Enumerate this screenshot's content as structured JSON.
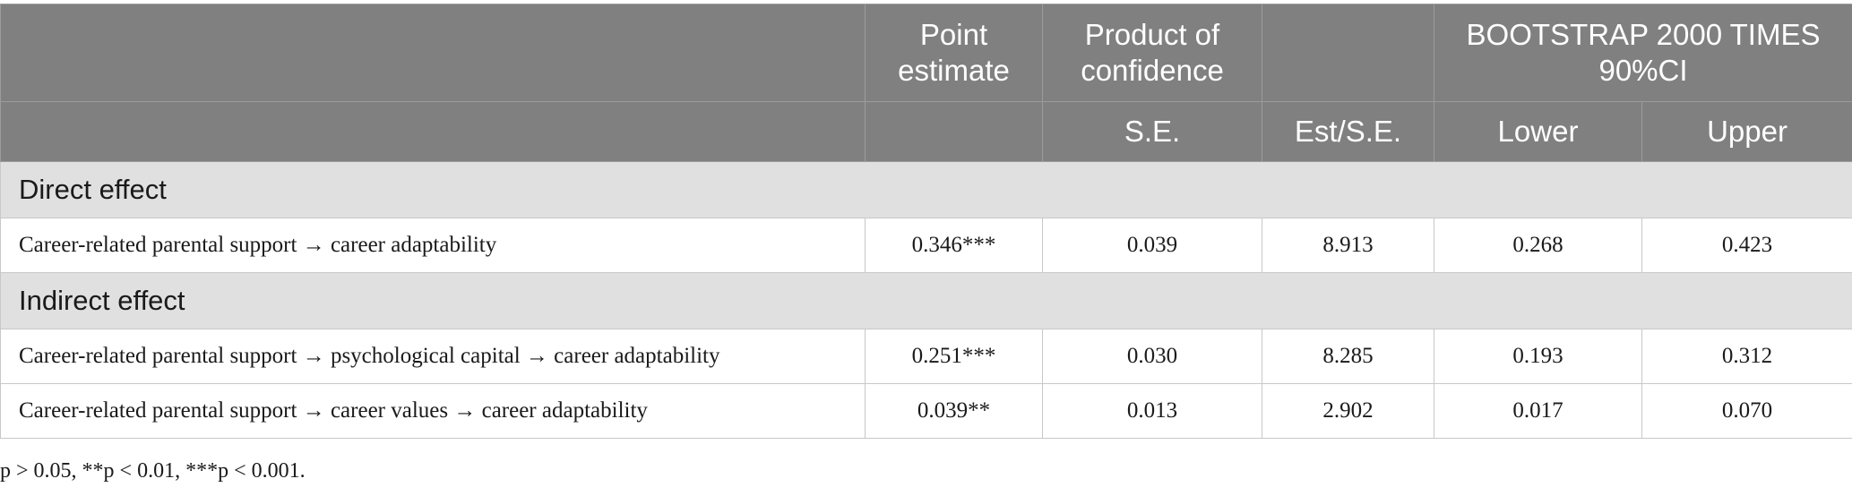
{
  "header": {
    "point_estimate": "Point estimate",
    "product_of_confidence": "Product of confidence",
    "bootstrap": "BOOTSTRAP 2000 TIMES 90%CI",
    "se": "S.E.",
    "est_se": "Est/S.E.",
    "lower": "Lower",
    "upper": "Upper"
  },
  "sections": [
    {
      "title": "Direct effect",
      "rows": [
        {
          "label": "Career-related parental support → career adaptability",
          "point": "0.346***",
          "se": "0.039",
          "est_se": "8.913",
          "lower": "0.268",
          "upper": "0.423"
        }
      ]
    },
    {
      "title": "Indirect effect",
      "rows": [
        {
          "label": "Career-related parental support → psychological capital → career adaptability",
          "point": "0.251***",
          "se": "0.030",
          "est_se": "8.285",
          "lower": "0.193",
          "upper": "0.312"
        },
        {
          "label": "Career-related parental support → career values → career adaptability",
          "point": "0.039**",
          "se": "0.013",
          "est_se": "2.902",
          "lower": "0.017",
          "upper": "0.070"
        }
      ]
    }
  ],
  "footnote": "p > 0.05, **p < 0.01, ***p < 0.001."
}
